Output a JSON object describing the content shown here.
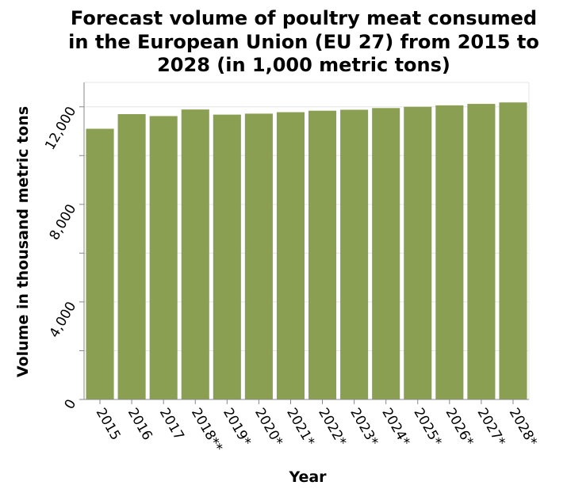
{
  "chart_data": {
    "type": "bar",
    "title_lines": [
      "Forecast volume of poultry meat consumed",
      "in the European Union (EU 27) from 2015 to",
      "2028 (in 1,000 metric tons)"
    ],
    "xlabel": "Year",
    "ylabel": "Volume in thousand metric tons",
    "categories": [
      "2015",
      "2016",
      "2017",
      "2018**",
      "2019*",
      "2020*",
      "2021*",
      "2022*",
      "2023*",
      "2024*",
      "2025*",
      "2026*",
      "2027*",
      "2028*"
    ],
    "values": [
      11100,
      11700,
      11620,
      11890,
      11680,
      11720,
      11780,
      11840,
      11880,
      11950,
      12000,
      12060,
      12120,
      12180
    ],
    "ylim": [
      0,
      13000
    ],
    "yticks": [
      0,
      4000,
      8000,
      12000
    ],
    "ytick_labels": [
      "0",
      "4,000",
      "8,000",
      "12,000"
    ],
    "minor_yticks": [
      2000,
      6000,
      10000
    ],
    "grid": true,
    "bar_color": "#8a9f51"
  }
}
